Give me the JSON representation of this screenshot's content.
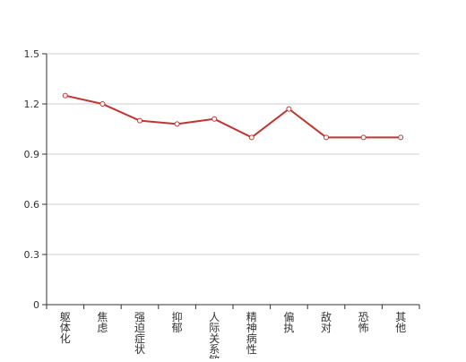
{
  "chart_data": {
    "type": "line",
    "categories": [
      "躯体化",
      "焦虑",
      "强迫症状",
      "抑郁",
      "人际关系敏感",
      "精神病性",
      "偏执",
      "敌对",
      "恐怖",
      "其他"
    ],
    "series": [
      {
        "values": [
          1.25,
          1.2,
          1.1,
          1.08,
          1.11,
          1.0,
          1.17,
          1.0,
          1.0,
          1.0
        ]
      }
    ],
    "ylim": [
      0,
      1.5
    ],
    "yticks": [
      "0",
      "0.3",
      "0.6",
      "0.9",
      "1.2",
      "1.5"
    ],
    "title": "",
    "xlabel": "",
    "ylabel": "",
    "grid": "horizontal",
    "legend": "none",
    "colors": {
      "line": "#c23531",
      "point_fill": "#ffffff",
      "grid": "#cccccc",
      "axis": "#333333",
      "text": "#333333"
    }
  }
}
